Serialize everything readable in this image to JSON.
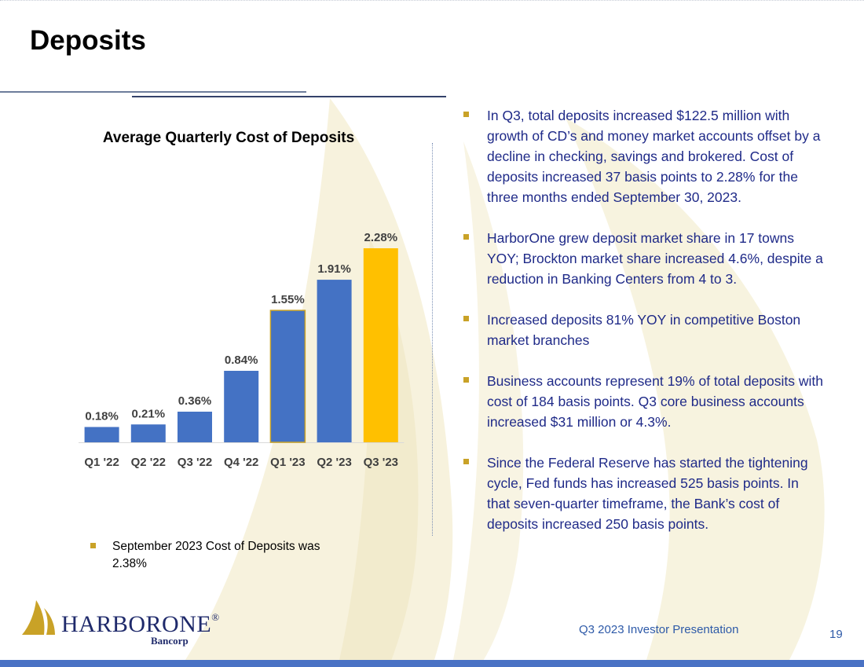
{
  "page": {
    "title": "Deposits",
    "footer": "Q3 2023 Investor Presentation",
    "page_number": "19"
  },
  "chart_data": {
    "type": "bar",
    "title": "Average Quarterly Cost of Deposits",
    "categories": [
      "Q1 '22",
      "Q2 '22",
      "Q3 '22",
      "Q4 '22",
      "Q1 '23",
      "Q2 '23",
      "Q3 '23"
    ],
    "values": [
      0.18,
      0.21,
      0.36,
      0.84,
      1.55,
      1.91,
      2.28
    ],
    "data_labels": [
      "0.18%",
      "0.21%",
      "0.36%",
      "0.84%",
      "1.55%",
      "1.91%",
      "2.28%"
    ],
    "ylim": [
      0,
      2.28
    ],
    "grid": false,
    "colors": {
      "bar": "#4472c4",
      "highlight": "#ffc000",
      "highlight_outline": "#c9a227"
    },
    "highlight_index": 6,
    "outlined_index": 4
  },
  "left_note": {
    "text": "September 2023 Cost of Deposits was 2.38%"
  },
  "bullets": [
    {
      "text": "In Q3, total deposits increased $122.5 million with growth of CD’s and money market accounts offset by a decline in checking, savings and brokered.   Cost of deposits increased 37 basis points to 2.28% for the three months ended September 30, 2023."
    },
    {
      "text": "HarborOne grew deposit market share in 17 towns YOY; Brockton market share increased 4.6%, despite a reduction in Banking Centers from 4 to 3."
    },
    {
      "text": "Increased deposits 81% YOY in competitive Boston market branches"
    },
    {
      "text": "Business accounts represent 19% of total deposits with cost of 184 basis points. Q3 core business accounts increased $31 million or 4.3%."
    },
    {
      "text": "Since the Federal Reserve has started the tightening cycle, Fed funds has increased 525 basis points. In that seven-quarter timeframe, the Bank’s cost of deposits increased 250 basis points."
    }
  ],
  "logo": {
    "name": "HARBORONE",
    "registered": "®",
    "subtitle": "Bancorp",
    "icon": "sail-logo-icon",
    "colors": {
      "gold": "#c9a227",
      "navy": "#1f2a6b"
    }
  },
  "colors": {
    "bullet_text": "#1f2a88",
    "bullet_mark": "#c9a227",
    "footer_text": "#2e5aa8",
    "bottom_bar": "#4a72c4"
  }
}
